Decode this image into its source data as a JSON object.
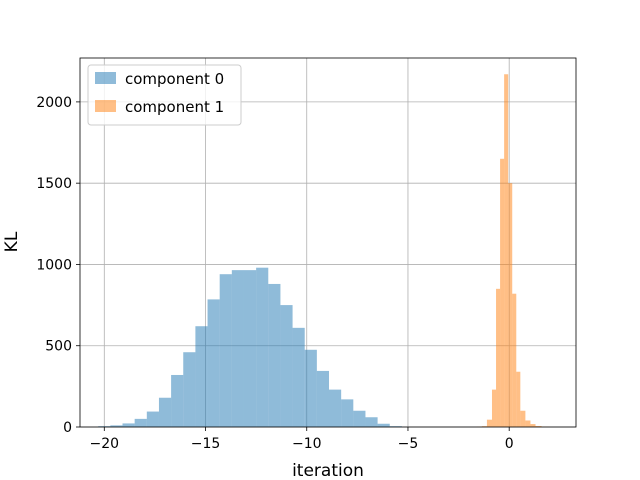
{
  "chart_data": {
    "type": "histogram",
    "title": "",
    "xlabel": "iteration",
    "ylabel": "KL",
    "xlim": [
      -21.2,
      3.3
    ],
    "ylim": [
      0,
      2270
    ],
    "grid": true,
    "legend_position": "upper-left",
    "xticks": [
      -20,
      -15,
      -10,
      -5,
      0
    ],
    "xtick_labels": [
      "−20",
      "−15",
      "−10",
      "−5",
      "0"
    ],
    "yticks": [
      0,
      500,
      1000,
      1500,
      2000
    ],
    "ytick_labels": [
      "0",
      "500",
      "1000",
      "1500",
      "2000"
    ],
    "series": [
      {
        "name": "component 0",
        "color": "#1f77b4",
        "alpha": 0.5,
        "bins": [
          [
            -20.3,
            -19.7,
            5
          ],
          [
            -19.7,
            -19.1,
            10
          ],
          [
            -19.1,
            -18.5,
            22
          ],
          [
            -18.5,
            -17.9,
            50
          ],
          [
            -17.9,
            -17.3,
            95
          ],
          [
            -17.3,
            -16.7,
            180
          ],
          [
            -16.7,
            -16.1,
            320
          ],
          [
            -16.1,
            -15.5,
            460
          ],
          [
            -15.5,
            -14.9,
            620
          ],
          [
            -14.9,
            -14.3,
            785
          ],
          [
            -14.3,
            -13.7,
            940
          ],
          [
            -13.7,
            -13.1,
            965
          ],
          [
            -13.1,
            -12.5,
            965
          ],
          [
            -12.5,
            -11.9,
            980
          ],
          [
            -11.9,
            -11.3,
            880
          ],
          [
            -11.3,
            -10.7,
            750
          ],
          [
            -10.7,
            -10.1,
            610
          ],
          [
            -10.1,
            -9.5,
            475
          ],
          [
            -9.5,
            -8.9,
            345
          ],
          [
            -8.9,
            -8.3,
            230
          ],
          [
            -8.3,
            -7.7,
            170
          ],
          [
            -7.7,
            -7.1,
            100
          ],
          [
            -7.1,
            -6.5,
            60
          ],
          [
            -6.5,
            -5.9,
            20
          ],
          [
            -5.9,
            -5.3,
            5
          ]
        ]
      },
      {
        "name": "component 1",
        "color": "#ff7f0e",
        "alpha": 0.5,
        "bins": [
          [
            -1.6,
            -1.35,
            2
          ],
          [
            -1.35,
            -1.1,
            5
          ],
          [
            -1.1,
            -0.85,
            45
          ],
          [
            -0.85,
            -0.65,
            230
          ],
          [
            -0.65,
            -0.45,
            850
          ],
          [
            -0.45,
            -0.25,
            1650
          ],
          [
            -0.25,
            -0.05,
            2170
          ],
          [
            -0.05,
            0.15,
            1500
          ],
          [
            0.15,
            0.35,
            820
          ],
          [
            0.35,
            0.55,
            340
          ],
          [
            0.55,
            0.8,
            100
          ],
          [
            0.8,
            1.05,
            40
          ],
          [
            1.05,
            1.3,
            18
          ],
          [
            1.3,
            1.6,
            6
          ],
          [
            1.6,
            2.0,
            2
          ]
        ]
      }
    ]
  }
}
